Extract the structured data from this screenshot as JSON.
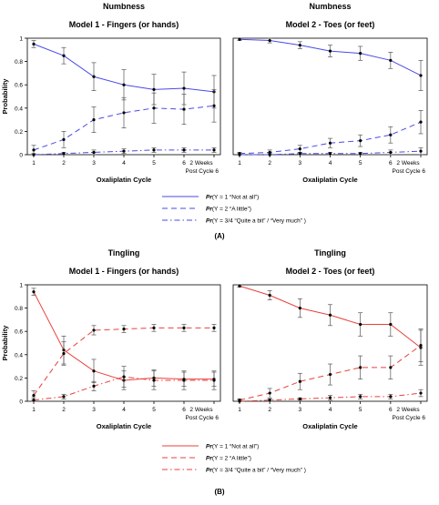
{
  "figure": {
    "panels": [
      {
        "label": "(A)",
        "title": "Numbness",
        "legend_label": "(A)"
      },
      {
        "label": "(B)",
        "title": "Tingling",
        "legend_label": "(B)"
      }
    ]
  },
  "chart_data": [
    {
      "type": "line",
      "panel": "(A)",
      "title": "Numbness",
      "subtitle": "Model 1 - Fingers (or hands)",
      "xlabel": "Oxaliplatin Cycle",
      "ylabel": "Probability",
      "categories": [
        "1",
        "2",
        "3",
        "4",
        "5",
        "6",
        "2 Weeks"
      ],
      "x_note": "Post Cycle 6",
      "ylim": [
        0,
        1
      ],
      "yticks": [
        "0",
        "0.2",
        "0.4",
        "0.6",
        "0.8",
        "1"
      ],
      "color": "#4a4ae8",
      "series": [
        {
          "values": [
            0.95,
            0.85,
            0.67,
            0.6,
            0.56,
            0.57,
            0.54
          ],
          "err": [
            0.03,
            0.07,
            0.12,
            0.13,
            0.13,
            0.14,
            0.14
          ],
          "style": "solid"
        },
        {
          "values": [
            0.04,
            0.13,
            0.3,
            0.36,
            0.4,
            0.39,
            0.42
          ],
          "err": [
            0.04,
            0.07,
            0.11,
            0.13,
            0.13,
            0.13,
            0.14
          ],
          "style": "dashed"
        },
        {
          "values": [
            0.0,
            0.01,
            0.02,
            0.03,
            0.04,
            0.04,
            0.04
          ],
          "err": [
            0.01,
            0.01,
            0.02,
            0.02,
            0.02,
            0.02,
            0.02
          ],
          "style": "dashdot"
        }
      ]
    },
    {
      "type": "line",
      "panel": "(A)",
      "title": "Numbness",
      "subtitle": "Model 2 - Toes (or feet)",
      "xlabel": "Oxaliplatin Cycle",
      "ylabel": "",
      "categories": [
        "1",
        "2",
        "3",
        "4",
        "5",
        "6",
        "2 Weeks"
      ],
      "x_note": "Post Cycle 6",
      "ylim": [
        0,
        1
      ],
      "yticks": [],
      "color": "#4a4ae8",
      "series": [
        {
          "values": [
            0.99,
            0.98,
            0.94,
            0.89,
            0.87,
            0.81,
            0.68
          ],
          "err": [
            0.01,
            0.02,
            0.03,
            0.05,
            0.06,
            0.07,
            0.13
          ],
          "style": "solid"
        },
        {
          "values": [
            0.01,
            0.02,
            0.05,
            0.1,
            0.12,
            0.17,
            0.28
          ],
          "err": [
            0.01,
            0.02,
            0.03,
            0.04,
            0.05,
            0.07,
            0.1
          ],
          "style": "dashed"
        },
        {
          "values": [
            0.0,
            0.0,
            0.01,
            0.01,
            0.01,
            0.02,
            0.03
          ],
          "err": [
            0.01,
            0.01,
            0.01,
            0.01,
            0.01,
            0.02,
            0.03
          ],
          "style": "dashdot"
        }
      ]
    },
    {
      "type": "line",
      "panel": "(B)",
      "title": "Tingling",
      "subtitle": "Model 1 - Fingers (or hands)",
      "xlabel": "Oxaliplatin Cycle",
      "ylabel": "Probability",
      "categories": [
        "1",
        "2",
        "3",
        "4",
        "5",
        "6",
        "2 Weeks"
      ],
      "x_note": "Post Cycle 6",
      "ylim": [
        0,
        1
      ],
      "yticks": [
        "0",
        "0.2",
        "0.4",
        "0.6",
        "0.8",
        "1"
      ],
      "color": "#e8413c",
      "series": [
        {
          "values": [
            0.94,
            0.44,
            0.26,
            0.18,
            0.2,
            0.19,
            0.19
          ],
          "err": [
            0.03,
            0.12,
            0.1,
            0.08,
            0.07,
            0.06,
            0.06
          ],
          "style": "solid"
        },
        {
          "values": [
            0.05,
            0.41,
            0.61,
            0.62,
            0.63,
            0.63,
            0.63
          ],
          "err": [
            0.04,
            0.1,
            0.04,
            0.03,
            0.03,
            0.03,
            0.03
          ],
          "style": "dashed"
        },
        {
          "values": [
            0.01,
            0.04,
            0.13,
            0.21,
            0.18,
            0.18,
            0.18
          ],
          "err": [
            0.02,
            0.02,
            0.04,
            0.09,
            0.08,
            0.08,
            0.08
          ],
          "style": "dashdot"
        }
      ]
    },
    {
      "type": "line",
      "panel": "(B)",
      "title": "Tingling",
      "subtitle": "Model 2 - Toes (or feet)",
      "xlabel": "Oxaliplatin Cycle",
      "ylabel": "",
      "categories": [
        "1",
        "2",
        "3",
        "4",
        "5",
        "6",
        "2 Weeks"
      ],
      "x_note": "Post Cycle 6",
      "ylim": [
        0,
        1
      ],
      "yticks": [],
      "color": "#e8413c",
      "series": [
        {
          "values": [
            0.99,
            0.91,
            0.8,
            0.74,
            0.66,
            0.66,
            0.46
          ],
          "err": [
            0.01,
            0.04,
            0.08,
            0.09,
            0.1,
            0.1,
            0.15
          ],
          "style": "solid"
        },
        {
          "values": [
            0.01,
            0.07,
            0.17,
            0.23,
            0.29,
            0.29,
            0.48
          ],
          "err": [
            0.01,
            0.04,
            0.07,
            0.09,
            0.1,
            0.1,
            0.14
          ],
          "style": "dashed"
        },
        {
          "values": [
            0.0,
            0.01,
            0.02,
            0.03,
            0.04,
            0.04,
            0.07
          ],
          "err": [
            0.01,
            0.01,
            0.01,
            0.02,
            0.02,
            0.02,
            0.03
          ],
          "style": "dashdot"
        }
      ]
    }
  ],
  "legends": [
    {
      "panel": "(A)",
      "color": "#4a4ae8",
      "entries": [
        {
          "pr": "Pr",
          "text": "(Y = 1 “Not at all”)",
          "style": "solid"
        },
        {
          "pr": "Pr",
          "text": "(Y = 2 “A little”)",
          "style": "dashed"
        },
        {
          "pr": "Pr",
          "text": "(Y = 3/4 “Quite a bit” / “Very much” )",
          "style": "dashdot"
        }
      ]
    },
    {
      "panel": "(B)",
      "color": "#e8413c",
      "entries": [
        {
          "pr": "Pr",
          "text": "(Y = 1 “Not at all”)",
          "style": "solid"
        },
        {
          "pr": "Pr",
          "text": "(Y = 2 “A little”)",
          "style": "dashed"
        },
        {
          "pr": "Pr",
          "text": "(Y = 3/4 “Quite a bit” / “Very much” )",
          "style": "dashdot"
        }
      ]
    }
  ]
}
